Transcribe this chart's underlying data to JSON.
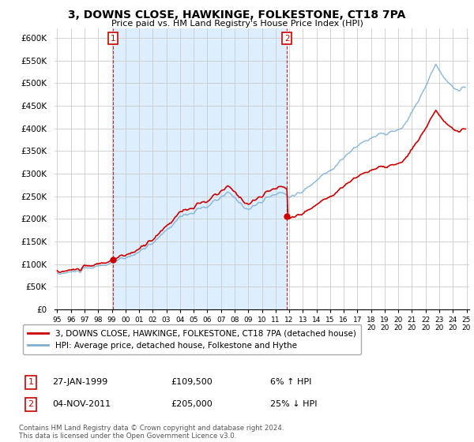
{
  "title": "3, DOWNS CLOSE, HAWKINGE, FOLKESTONE, CT18 7PA",
  "subtitle": "Price paid vs. HM Land Registry's House Price Index (HPI)",
  "ylim": [
    0,
    620000
  ],
  "yticks": [
    0,
    50000,
    100000,
    150000,
    200000,
    250000,
    300000,
    350000,
    400000,
    450000,
    500000,
    550000,
    600000
  ],
  "ytick_labels": [
    "£0",
    "£50K",
    "£100K",
    "£150K",
    "£200K",
    "£250K",
    "£300K",
    "£350K",
    "£400K",
    "£450K",
    "£500K",
    "£550K",
    "£600K"
  ],
  "hpi_color": "#7bafd4",
  "price_color": "#cc0000",
  "shade_color": "#ddeeff",
  "marker1_year": 1999.08,
  "marker1_value": 109500,
  "marker1_label": "1",
  "marker1_date": "27-JAN-1999",
  "marker1_price": "£109,500",
  "marker1_hpi": "6% ↑ HPI",
  "marker2_year": 2011.84,
  "marker2_value": 205000,
  "marker2_label": "2",
  "marker2_date": "04-NOV-2011",
  "marker2_price": "£205,000",
  "marker2_hpi": "25% ↓ HPI",
  "legend_line1": "3, DOWNS CLOSE, HAWKINGE, FOLKESTONE, CT18 7PA (detached house)",
  "legend_line2": "HPI: Average price, detached house, Folkestone and Hythe",
  "footnote": "Contains HM Land Registry data © Crown copyright and database right 2024.\nThis data is licensed under the Open Government Licence v3.0.",
  "background_color": "#ffffff",
  "grid_color": "#cccccc"
}
